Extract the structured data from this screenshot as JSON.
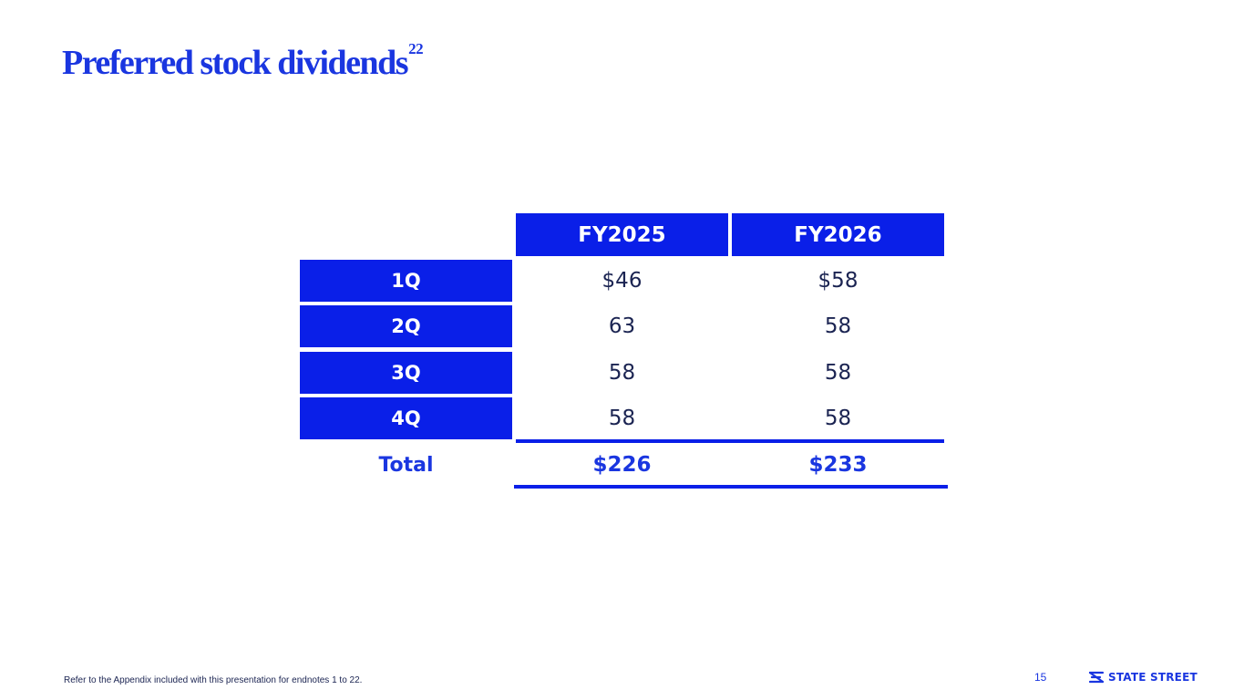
{
  "title": "Preferred stock dividends",
  "title_superscript": "22",
  "table": {
    "columns": [
      "FY2025",
      "FY2026"
    ],
    "rows": [
      {
        "label": "1Q",
        "values": [
          "$46",
          "$58"
        ]
      },
      {
        "label": "2Q",
        "values": [
          "63",
          "58"
        ]
      },
      {
        "label": "3Q",
        "values": [
          "58",
          "58"
        ]
      },
      {
        "label": "4Q",
        "values": [
          "58",
          "58"
        ]
      }
    ],
    "total": {
      "label": "Total",
      "values": [
        "$226",
        "$233"
      ]
    }
  },
  "footnote": "Refer to the Appendix included with this presentation for endnotes 1 to 22.",
  "page_number": "15",
  "logo": {
    "text": "STATE STREET",
    "icon": "state-street-logo-icon"
  },
  "colors": {
    "accent": "#0a1fe8",
    "title": "#1a36e0",
    "text": "#1b2452"
  }
}
